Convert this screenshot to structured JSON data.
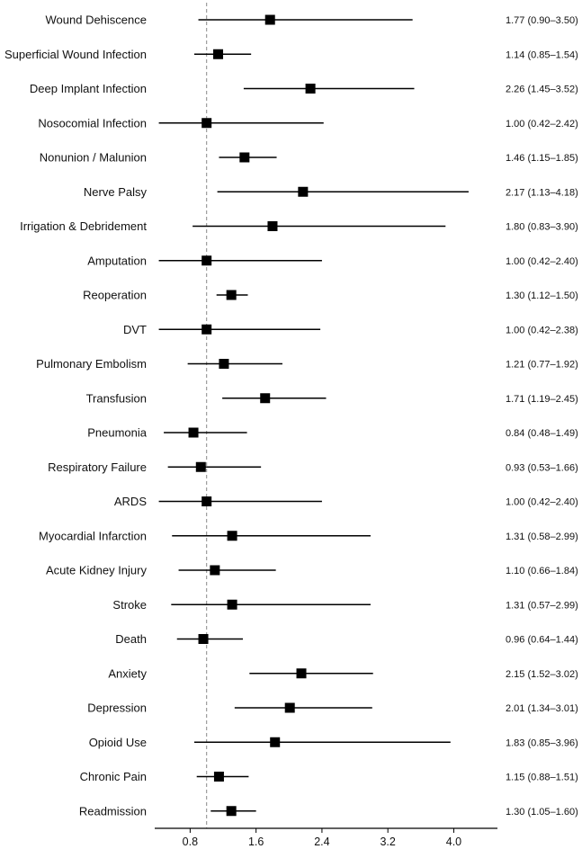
{
  "chart_data": {
    "type": "forest",
    "xlabel": "",
    "ylabel": "",
    "xlim": [
      0.37,
      4.53
    ],
    "xticks": [
      "0.8",
      "1.6",
      "2.4",
      "3.2",
      "4.0"
    ],
    "xtick_values": [
      0.8,
      1.6,
      2.4,
      3.2,
      4.0
    ],
    "reference_line": 1.0,
    "marker_color": "#000000",
    "rows": [
      {
        "label": "Wound Dehiscence",
        "or": 1.77,
        "lo": 0.9,
        "hi": 3.5,
        "text": "1.77 (0.90–3.50)"
      },
      {
        "label": "Superficial Wound Infection",
        "or": 1.14,
        "lo": 0.85,
        "hi": 1.54,
        "text": "1.14 (0.85–1.54)"
      },
      {
        "label": "Deep Implant Infection",
        "or": 2.26,
        "lo": 1.45,
        "hi": 3.52,
        "text": "2.26 (1.45–3.52)"
      },
      {
        "label": "Nosocomial Infection",
        "or": 1.0,
        "lo": 0.42,
        "hi": 2.42,
        "text": "1.00 (0.42–2.42)"
      },
      {
        "label": "Nonunion / Malunion",
        "or": 1.46,
        "lo": 1.15,
        "hi": 1.85,
        "text": "1.46 (1.15–1.85)"
      },
      {
        "label": "Nerve Palsy",
        "or": 2.17,
        "lo": 1.13,
        "hi": 4.18,
        "text": "2.17 (1.13–4.18)"
      },
      {
        "label": "Irrigation & Debridement",
        "or": 1.8,
        "lo": 0.83,
        "hi": 3.9,
        "text": "1.80 (0.83–3.90)"
      },
      {
        "label": "Amputation",
        "or": 1.0,
        "lo": 0.42,
        "hi": 2.4,
        "text": "1.00 (0.42–2.40)"
      },
      {
        "label": "Reoperation",
        "or": 1.3,
        "lo": 1.12,
        "hi": 1.5,
        "text": "1.30 (1.12–1.50)"
      },
      {
        "label": "DVT",
        "or": 1.0,
        "lo": 0.42,
        "hi": 2.38,
        "text": "1.00 (0.42–2.38)"
      },
      {
        "label": "Pulmonary Embolism",
        "or": 1.21,
        "lo": 0.77,
        "hi": 1.92,
        "text": "1.21 (0.77–1.92)"
      },
      {
        "label": "Transfusion",
        "or": 1.71,
        "lo": 1.19,
        "hi": 2.45,
        "text": "1.71 (1.19–2.45)"
      },
      {
        "label": "Pneumonia",
        "or": 0.84,
        "lo": 0.48,
        "hi": 1.49,
        "text": "0.84 (0.48–1.49)"
      },
      {
        "label": "Respiratory Failure",
        "or": 0.93,
        "lo": 0.53,
        "hi": 1.66,
        "text": "0.93 (0.53–1.66)"
      },
      {
        "label": "ARDS",
        "or": 1.0,
        "lo": 0.42,
        "hi": 2.4,
        "text": "1.00 (0.42–2.40)"
      },
      {
        "label": "Myocardial Infarction",
        "or": 1.31,
        "lo": 0.58,
        "hi": 2.99,
        "text": "1.31 (0.58–2.99)"
      },
      {
        "label": "Acute Kidney Injury",
        "or": 1.1,
        "lo": 0.66,
        "hi": 1.84,
        "text": "1.10 (0.66–1.84)"
      },
      {
        "label": "Stroke",
        "or": 1.31,
        "lo": 0.57,
        "hi": 2.99,
        "text": "1.31 (0.57–2.99)"
      },
      {
        "label": "Death",
        "or": 0.96,
        "lo": 0.64,
        "hi": 1.44,
        "text": "0.96 (0.64–1.44)"
      },
      {
        "label": "Anxiety",
        "or": 2.15,
        "lo": 1.52,
        "hi": 3.02,
        "text": "2.15 (1.52–3.02)"
      },
      {
        "label": "Depression",
        "or": 2.01,
        "lo": 1.34,
        "hi": 3.01,
        "text": "2.01 (1.34–3.01)"
      },
      {
        "label": "Opioid Use",
        "or": 1.83,
        "lo": 0.85,
        "hi": 3.96,
        "text": "1.83 (0.85–3.96)"
      },
      {
        "label": "Chronic Pain",
        "or": 1.15,
        "lo": 0.88,
        "hi": 1.51,
        "text": "1.15 (0.88–1.51)"
      },
      {
        "label": "Readmission",
        "or": 1.3,
        "lo": 1.05,
        "hi": 1.6,
        "text": "1.30 (1.05–1.60)"
      }
    ]
  }
}
